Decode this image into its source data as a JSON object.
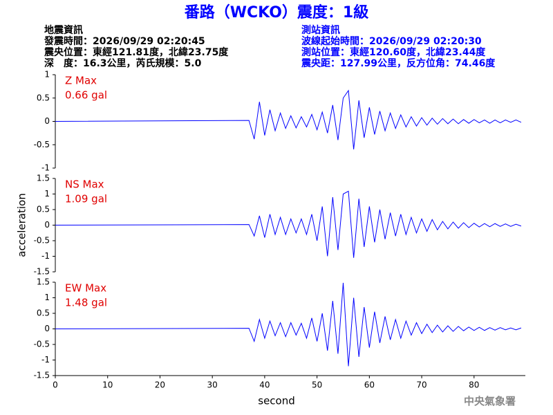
{
  "header": {
    "title": "番路（WCKO）震度：1級",
    "left": [
      "地震資訊",
      "發震時間：2026/09/29 02:20:45",
      "震央位置：東經121.81度，北緯23.75度",
      "深　度：16.3公里，芮氏規模：5.0"
    ],
    "right": [
      "測站資訊",
      "波線起始時間：2026/09/29 02:20:30",
      "測站位置：東經120.60度，北緯23.44度",
      "震央距：127.99公里，反方位角：74.46度"
    ],
    "watermark": "中央氣象署"
  },
  "chart_data": [
    {
      "type": "line",
      "title": "Z Max",
      "subtitle": "0.66 gal",
      "color": "#0000ff",
      "x": [
        0,
        37,
        38,
        39,
        40,
        41,
        42,
        43,
        44,
        45,
        46,
        47,
        48,
        49,
        50,
        51,
        52,
        53,
        54,
        55,
        56,
        57,
        58,
        59,
        60,
        61,
        62,
        63,
        64,
        65,
        66,
        67,
        68,
        69,
        70,
        71,
        72,
        73,
        74,
        75,
        76,
        77,
        78,
        79,
        80,
        81,
        82,
        83,
        84,
        85,
        86,
        87,
        88,
        89
      ],
      "values": [
        0,
        0.02,
        -0.38,
        0.42,
        -0.3,
        0.25,
        -0.2,
        0.18,
        -0.15,
        0.12,
        -0.14,
        0.1,
        -0.12,
        0.15,
        -0.18,
        0.2,
        -0.25,
        0.35,
        -0.4,
        0.5,
        0.66,
        -0.6,
        0.45,
        -0.35,
        0.3,
        -0.28,
        0.22,
        -0.2,
        0.18,
        -0.15,
        0.14,
        -0.12,
        0.1,
        -0.1,
        0.08,
        -0.08,
        0.07,
        -0.06,
        0.06,
        -0.05,
        0.05,
        -0.05,
        0.04,
        -0.04,
        0.04,
        -0.03,
        0.03,
        -0.04,
        0.03,
        -0.03,
        0.03,
        -0.02,
        0.03,
        -0.02
      ],
      "xlim": [
        0,
        89.8
      ],
      "ylim": [
        -1,
        1
      ],
      "yticks": [
        1,
        0.5,
        0,
        -0.5,
        -1
      ]
    },
    {
      "type": "line",
      "title": "NS Max",
      "subtitle": "1.09 gal",
      "color": "#0000ff",
      "ylabel": "acceleration",
      "x": [
        0,
        37,
        38,
        39,
        40,
        41,
        42,
        43,
        44,
        45,
        46,
        47,
        48,
        49,
        50,
        51,
        52,
        53,
        54,
        55,
        56,
        57,
        58,
        59,
        60,
        61,
        62,
        63,
        64,
        65,
        66,
        67,
        68,
        69,
        70,
        71,
        72,
        73,
        74,
        75,
        76,
        77,
        78,
        79,
        80,
        81,
        82,
        83,
        84,
        85,
        86,
        87,
        88,
        89
      ],
      "values": [
        0,
        0.02,
        -0.35,
        0.3,
        -0.4,
        0.35,
        -0.3,
        0.25,
        -0.3,
        0.2,
        -0.25,
        0.2,
        -0.3,
        0.35,
        -0.5,
        0.6,
        -1.0,
        0.9,
        -0.8,
        1.0,
        1.09,
        -1.05,
        0.85,
        -0.7,
        0.6,
        -0.55,
        0.5,
        -0.45,
        0.4,
        -0.35,
        0.35,
        -0.3,
        0.25,
        -0.25,
        0.2,
        -0.2,
        0.18,
        -0.15,
        0.12,
        -0.12,
        0.1,
        -0.1,
        0.08,
        -0.08,
        0.06,
        -0.06,
        0.05,
        -0.05,
        0.05,
        -0.04,
        0.04,
        -0.04,
        0.03,
        -0.03
      ],
      "xlim": [
        0,
        89.8
      ],
      "ylim": [
        -1.5,
        1.5
      ],
      "yticks": [
        1.5,
        1,
        0.5,
        0,
        -0.5,
        -1,
        -1.5
      ]
    },
    {
      "type": "line",
      "title": "EW Max",
      "subtitle": "1.48 gal",
      "color": "#0000ff",
      "xlabel": "second",
      "x": [
        0,
        37,
        38,
        39,
        40,
        41,
        42,
        43,
        44,
        45,
        46,
        47,
        48,
        49,
        50,
        51,
        52,
        53,
        54,
        55,
        56,
        57,
        58,
        59,
        60,
        61,
        62,
        63,
        64,
        65,
        66,
        67,
        68,
        69,
        70,
        71,
        72,
        73,
        74,
        75,
        76,
        77,
        78,
        79,
        80,
        81,
        82,
        83,
        84,
        85,
        86,
        87,
        88,
        89
      ],
      "values": [
        0,
        0.02,
        -0.4,
        0.3,
        -0.3,
        0.25,
        -0.22,
        0.2,
        -0.25,
        0.2,
        -0.2,
        0.18,
        -0.3,
        0.35,
        -0.4,
        0.5,
        -0.7,
        0.9,
        -0.8,
        1.48,
        -1.2,
        1.0,
        -0.9,
        0.7,
        -0.6,
        0.55,
        -0.45,
        0.4,
        -0.35,
        0.3,
        -0.3,
        0.25,
        -0.2,
        0.2,
        -0.15,
        0.15,
        -0.12,
        0.12,
        -0.1,
        0.1,
        -0.08,
        0.08,
        -0.06,
        0.06,
        -0.05,
        0.05,
        -0.05,
        0.04,
        -0.04,
        0.04,
        -0.03,
        0.03,
        -0.03,
        0.03
      ],
      "xlim": [
        0,
        89.8
      ],
      "ylim": [
        -1.5,
        1.5
      ],
      "yticks": [
        1.5,
        1,
        0.5,
        0,
        -0.5,
        -1,
        -1.5
      ],
      "xticks": [
        0,
        10,
        20,
        30,
        40,
        50,
        60,
        70,
        80
      ]
    }
  ]
}
